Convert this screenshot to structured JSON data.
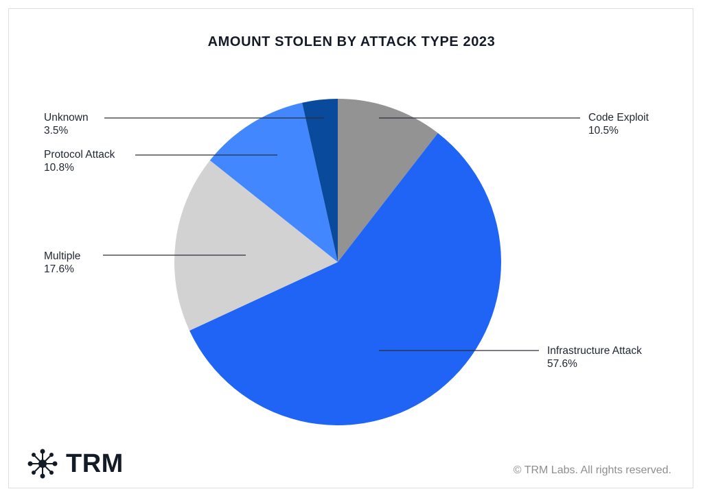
{
  "chart_data": {
    "type": "pie",
    "title": "AMOUNT STOLEN BY ATTACK TYPE 2023",
    "start_angle_deg": 0,
    "direction": "clockwise",
    "legend_position": "callout labels",
    "slices": [
      {
        "label": "Code Exploit",
        "value": 10.5,
        "display": "10.5%",
        "color": "#939393"
      },
      {
        "label": "Infrastructure Attack",
        "value": 57.6,
        "display": "57.6%",
        "color": "#2064f5"
      },
      {
        "label": "Multiple",
        "value": 17.6,
        "display": "17.6%",
        "color": "#d2d2d2"
      },
      {
        "label": "Protocol Attack",
        "value": 10.8,
        "display": "10.8%",
        "color": "#4287fd"
      },
      {
        "label": "Unknown",
        "value": 3.5,
        "display": "3.5%",
        "color": "#0a4a9c"
      }
    ]
  },
  "branding": {
    "logo_text": "TRM",
    "copyright": "© TRM Labs. All rights reserved."
  }
}
